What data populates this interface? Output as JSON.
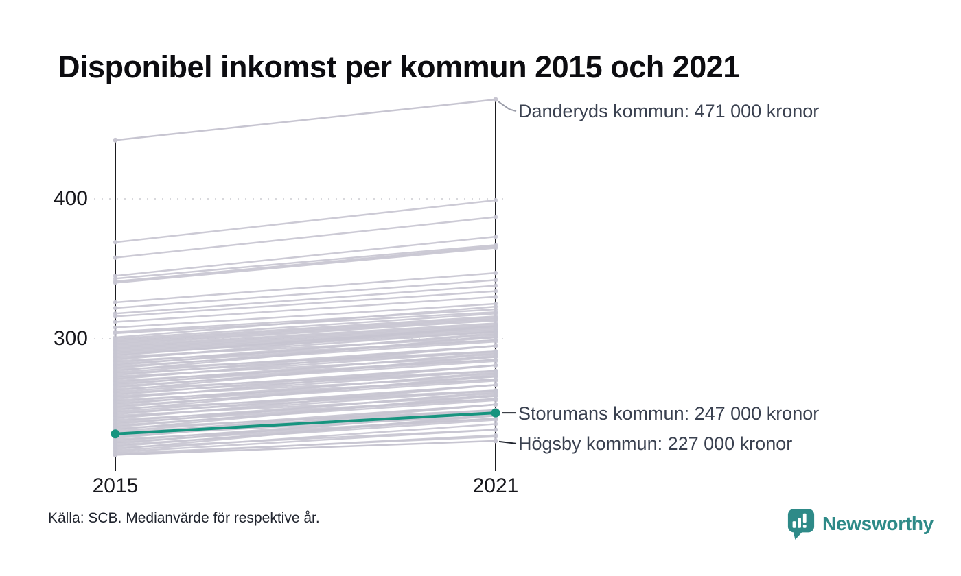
{
  "title": "Disponibel inkomst per kommun 2015 och 2021",
  "source": "Källa: SCB. Medianvärde för respektive år.",
  "branding": {
    "name": "Newsworthy",
    "logo_icon": "speech-bubble-bar-chart-icon",
    "color": "#2e8a88"
  },
  "colors": {
    "accent": "#17947f",
    "line_gray": "#c7c5d1",
    "axis": "#1b1b1f",
    "grid": "#d8d8dc",
    "annotation_text": "#3a4150",
    "leader_dark": "#20242e",
    "leader_light": "#9a9ca8"
  },
  "chart_data": {
    "type": "line",
    "subtype": "slope",
    "x": [
      2015,
      2021
    ],
    "x_labels": [
      "2015",
      "2021"
    ],
    "y_ticks": [
      400,
      300
    ],
    "ylim": [
      210,
      480
    ],
    "grid": "dotted-horizontal",
    "legend": "none",
    "highlighted_series": [
      {
        "name": "Danderyds kommun",
        "values": [
          442,
          471
        ],
        "label": "Danderyds kommun: 471 000 kronor",
        "style": "gray"
      },
      {
        "name": "Storumans kommun",
        "values": [
          232,
          247
        ],
        "label": "Storumans kommun: 247 000 kronor",
        "style": "accent"
      },
      {
        "name": "Högsby kommun",
        "values": [
          217,
          227
        ],
        "label": "Högsby kommun: 227 000 kronor",
        "style": "gray"
      }
    ],
    "background_series": [
      [
        369,
        399
      ],
      [
        358,
        387
      ],
      [
        345,
        373
      ],
      [
        343,
        367
      ],
      [
        341,
        366
      ],
      [
        340,
        365
      ],
      [
        326,
        347
      ],
      [
        322,
        342
      ],
      [
        318,
        338
      ],
      [
        316,
        334
      ],
      [
        312,
        330
      ],
      [
        308,
        325
      ],
      [
        305,
        321
      ],
      [
        304,
        319
      ],
      [
        301,
        323
      ],
      [
        300,
        318
      ],
      [
        299,
        316
      ],
      [
        298,
        315
      ],
      [
        297,
        314
      ],
      [
        296,
        313
      ],
      [
        295,
        311
      ],
      [
        294,
        310
      ],
      [
        293,
        309
      ],
      [
        292,
        308
      ],
      [
        291,
        307
      ],
      [
        290,
        306
      ],
      [
        289,
        305
      ],
      [
        288,
        309
      ],
      [
        287,
        301
      ],
      [
        286,
        305
      ],
      [
        285,
        309
      ],
      [
        284,
        299
      ],
      [
        283,
        303
      ],
      [
        282,
        299
      ],
      [
        281,
        304
      ],
      [
        280,
        298
      ],
      [
        279,
        301
      ],
      [
        278,
        291
      ],
      [
        277,
        302
      ],
      [
        276,
        295
      ],
      [
        275,
        291
      ],
      [
        274,
        295
      ],
      [
        273,
        287
      ],
      [
        272,
        291
      ],
      [
        271,
        295
      ],
      [
        270,
        285
      ],
      [
        269,
        289
      ],
      [
        268,
        285
      ],
      [
        267,
        290
      ],
      [
        266,
        284
      ],
      [
        265,
        287
      ],
      [
        264,
        277
      ],
      [
        263,
        288
      ],
      [
        262,
        281
      ],
      [
        261,
        277
      ],
      [
        260,
        281
      ],
      [
        259,
        273
      ],
      [
        258,
        277
      ],
      [
        257,
        281
      ],
      [
        256,
        271
      ],
      [
        255,
        275
      ],
      [
        254,
        271
      ],
      [
        253,
        276
      ],
      [
        252,
        270
      ],
      [
        251,
        273
      ],
      [
        250,
        263
      ],
      [
        249,
        274
      ],
      [
        248,
        267
      ],
      [
        247,
        263
      ],
      [
        246,
        267
      ],
      [
        245,
        259
      ],
      [
        244,
        263
      ],
      [
        243,
        267
      ],
      [
        242,
        257
      ],
      [
        241,
        261
      ],
      [
        240,
        257
      ],
      [
        239,
        262
      ],
      [
        238,
        256
      ],
      [
        237,
        259
      ],
      [
        236,
        249
      ],
      [
        235,
        260
      ],
      [
        234,
        253
      ],
      [
        233,
        249
      ],
      [
        232,
        253
      ],
      [
        231,
        245
      ],
      [
        230,
        249
      ],
      [
        229,
        253
      ],
      [
        228,
        243
      ],
      [
        227,
        247
      ],
      [
        226,
        243
      ],
      [
        225,
        248
      ],
      [
        224,
        242
      ],
      [
        223,
        245
      ],
      [
        222,
        235
      ],
      [
        221,
        246
      ],
      [
        220,
        239
      ],
      [
        219,
        235
      ],
      [
        218,
        230
      ],
      [
        217,
        231
      ]
    ]
  }
}
